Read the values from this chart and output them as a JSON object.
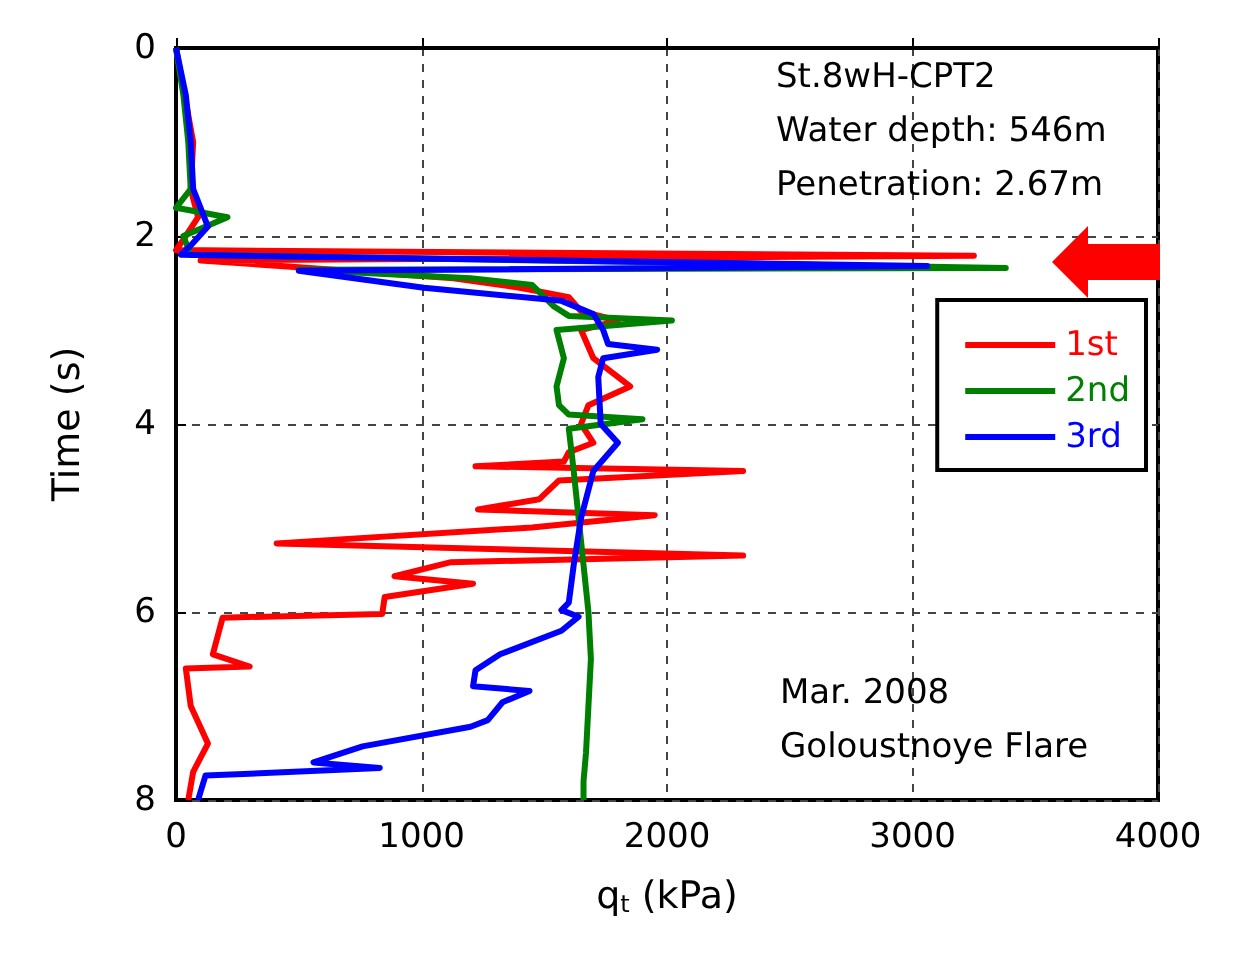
{
  "chart_data": {
    "type": "line",
    "xlabel": "q$_{t}$ (kPa)",
    "ylabel": "Time (s)",
    "xlim": [
      0,
      4000
    ],
    "xticks": [
      0,
      1000,
      2000,
      3000,
      4000
    ],
    "ylim": [
      8,
      0
    ],
    "yticks": [
      0,
      2,
      4,
      6,
      8
    ],
    "grid": true,
    "legend": "right",
    "marker": "none",
    "line_style": "solid",
    "annotations": [
      "St.8wH-CPT2",
      "Water depth: 546m",
      "Penetration: 2.67m",
      "Mar. 2008",
      "Goloustnoye Flare"
    ],
    "series": [
      {
        "name": "1st",
        "color": "#ff0000",
        "x": [
          0,
          70,
          60,
          90,
          40,
          0,
          3250,
          100,
          600,
          1130,
          1400,
          1600,
          1650,
          1800,
          1650,
          1700,
          1850,
          1680,
          1650,
          1700,
          1600,
          1580,
          1220,
          2310,
          1560,
          1480,
          1230,
          1950,
          1450,
          410,
          2310,
          1120,
          890,
          1210,
          850,
          840,
          190,
          150,
          300,
          40,
          60,
          130,
          70,
          50
        ],
        "values": [
          0,
          1,
          1.5,
          1.8,
          2,
          2.15,
          2.21,
          2.26,
          2.35,
          2.45,
          2.55,
          2.65,
          2.8,
          2.9,
          3.0,
          3.3,
          3.6,
          3.8,
          4.0,
          4.2,
          4.3,
          4.4,
          4.45,
          4.5,
          4.6,
          4.8,
          4.91,
          4.97,
          5.1,
          5.27,
          5.4,
          5.47,
          5.62,
          5.7,
          5.84,
          6.02,
          6.06,
          6.45,
          6.58,
          6.6,
          7.0,
          7.4,
          7.7,
          8.0
        ]
      },
      {
        "name": "2nd",
        "color": "#008000",
        "x": [
          0,
          30,
          50,
          60,
          0,
          210,
          30,
          60,
          3380,
          500,
          1200,
          1450,
          1540,
          1600,
          2020,
          1550,
          1580,
          1550,
          1560,
          1600,
          1900,
          1600,
          1620,
          1640,
          1660,
          1680,
          1690,
          1680,
          1670,
          1660,
          1660
        ],
        "values": [
          0,
          0.5,
          1,
          1.5,
          1.7,
          1.8,
          2.0,
          2.2,
          2.34,
          2.36,
          2.45,
          2.52,
          2.75,
          2.85,
          2.9,
          3.0,
          3.3,
          3.6,
          3.8,
          3.9,
          3.95,
          4.05,
          4.5,
          5.0,
          5.5,
          6.0,
          6.5,
          7.0,
          7.5,
          7.8,
          8.0
        ]
      },
      {
        "name": "3rd",
        "color": "#0000ff",
        "x": [
          0,
          40,
          60,
          70,
          130,
          60,
          20,
          3060,
          500,
          1010,
          1570,
          1700,
          1740,
          1760,
          1960,
          1740,
          1720,
          1730,
          1800,
          1700,
          1650,
          1620,
          1600,
          1570,
          1640,
          1570,
          1320,
          1220,
          1210,
          1440,
          1330,
          1270,
          1200,
          760,
          560,
          830,
          120,
          90
        ],
        "values": [
          0,
          0.5,
          1,
          1.5,
          1.9,
          2.1,
          2.2,
          2.32,
          2.37,
          2.55,
          2.69,
          2.83,
          3.0,
          3.15,
          3.21,
          3.3,
          3.5,
          4.0,
          4.2,
          4.5,
          5.0,
          5.5,
          5.9,
          5.98,
          6.05,
          6.2,
          6.45,
          6.62,
          6.79,
          6.84,
          6.96,
          7.15,
          7.22,
          7.43,
          7.6,
          7.66,
          7.74,
          8.0
        ]
      }
    ]
  }
}
